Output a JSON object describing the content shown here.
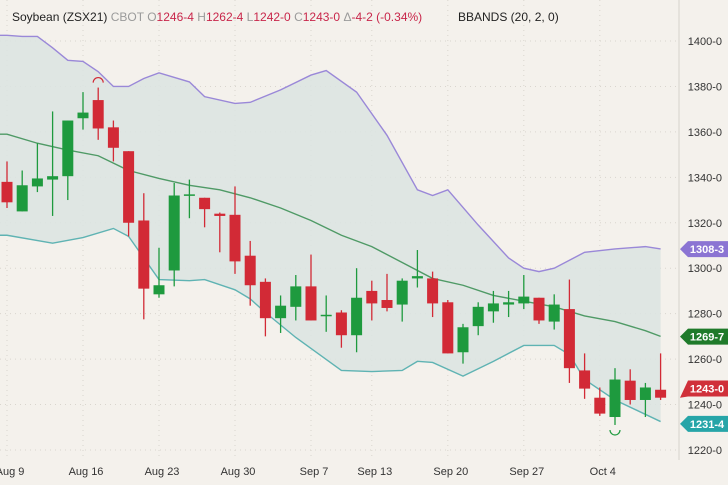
{
  "header": {
    "symbol": "Soybean (ZSX21)",
    "exchange": "CBOT",
    "open_label": "O",
    "open": "1246-4",
    "high_label": "H",
    "high": "1262-4",
    "low_label": "L",
    "low": "1242-0",
    "close_label": "C",
    "close": "1243-0",
    "change_label": "Δ",
    "change": "-4-2 (-0.34%)",
    "indicator": "BBANDS (20, 2, 0)"
  },
  "colors": {
    "up": "#1e9a3e",
    "down": "#d22a36",
    "upper_band": "#9a88d8",
    "middle_band": "#4f9a66",
    "lower_band": "#5fb3b3",
    "band_fill": "#dbe4e2"
  },
  "chart_data": {
    "type": "candlestick",
    "yaxis": {
      "ylim": [
        1215,
        1408
      ],
      "ticks": [
        1220,
        1240,
        1260,
        1280,
        1300,
        1320,
        1340,
        1360,
        1380,
        1400
      ],
      "tick_labels": [
        "1220-0",
        "1240-0",
        "1260-0",
        "1280-0",
        "1300-0",
        "1320-0",
        "1340-0",
        "1360-0",
        "1380-0",
        "1400-0"
      ],
      "position": "right"
    },
    "xaxis": {
      "tick_labels": [
        {
          "index": 0,
          "label": "Aug 9"
        },
        {
          "index": 5,
          "label": "Aug 16"
        },
        {
          "index": 10,
          "label": "Aug 23"
        },
        {
          "index": 15,
          "label": "Aug 30"
        },
        {
          "index": 20,
          "label": "Sep 7"
        },
        {
          "index": 24,
          "label": "Sep 13"
        },
        {
          "index": 29,
          "label": "Sep 20"
        },
        {
          "index": 34,
          "label": "Sep 27"
        },
        {
          "index": 39,
          "label": "Oct 4"
        }
      ]
    },
    "grid": true,
    "candles": [
      [
        1338,
        1347,
        1326.5,
        1329
      ],
      [
        1325,
        1343,
        1325,
        1336.5
      ],
      [
        1336,
        1355,
        1333.5,
        1339.5
      ],
      [
        1339,
        1369,
        1323,
        1340.5
      ],
      [
        1340.5,
        1365,
        1330,
        1365
      ],
      [
        1366,
        1377.5,
        1361,
        1368.5
      ],
      [
        1374,
        1379.5,
        1356.5,
        1361.5
      ],
      [
        1362,
        1365,
        1347,
        1353
      ],
      [
        1351.5,
        1351.5,
        1314,
        1320
      ],
      [
        1321,
        1333,
        1277.5,
        1291
      ],
      [
        1288.5,
        1309,
        1287,
        1292.5
      ],
      [
        1299,
        1337.5,
        1292,
        1332
      ],
      [
        1332,
        1339,
        1322,
        1332.5
      ],
      [
        1331,
        1331,
        1318,
        1326
      ],
      [
        1324,
        1324.5,
        1307,
        1323
      ],
      [
        1323.5,
        1336,
        1297.5,
        1303
      ],
      [
        1305.5,
        1312,
        1283.5,
        1292.5
      ],
      [
        1294,
        1295.5,
        1270,
        1278
      ],
      [
        1278,
        1288,
        1271.5,
        1283.5
      ],
      [
        1283,
        1297,
        1277,
        1292
      ],
      [
        1292,
        1306,
        1277,
        1277
      ],
      [
        1279,
        1288,
        1272,
        1279.5
      ],
      [
        1280.5,
        1281.5,
        1265,
        1270.5
      ],
      [
        1270.5,
        1300,
        1263,
        1287
      ],
      [
        1290,
        1294.5,
        1277,
        1284.5
      ],
      [
        1286,
        1297.5,
        1281,
        1282.5
      ],
      [
        1284,
        1295.5,
        1276.5,
        1294.5
      ],
      [
        1295.5,
        1308,
        1291.5,
        1296.5
      ],
      [
        1295.5,
        1298.5,
        1278.5,
        1284.5
      ],
      [
        1285,
        1286,
        1262.5,
        1262.5
      ],
      [
        1263,
        1275.5,
        1258,
        1274
      ],
      [
        1274.5,
        1285,
        1270.5,
        1283
      ],
      [
        1281,
        1290,
        1276,
        1284.5
      ],
      [
        1284,
        1290,
        1278.5,
        1285
      ],
      [
        1284.5,
        1297,
        1282,
        1287.5
      ],
      [
        1287,
        1287,
        1275.5,
        1277
      ],
      [
        1276.5,
        1288.5,
        1273,
        1284
      ],
      [
        1282,
        1295,
        1249.5,
        1256
      ],
      [
        1255,
        1262.5,
        1242.5,
        1247
      ],
      [
        1243,
        1247.5,
        1235,
        1236
      ],
      [
        1234.5,
        1256,
        1231,
        1251
      ],
      [
        1250.5,
        1255.5,
        1240,
        1242
      ],
      [
        1242,
        1249.5,
        1234.5,
        1247.5
      ],
      [
        1246.5,
        1262.5,
        1242,
        1243
      ]
    ],
    "candle_fields": [
      "open",
      "high",
      "low",
      "close"
    ],
    "bbands": {
      "upper": [
        [
          0,
          1402.5
        ],
        [
          1,
          1402
        ],
        [
          2,
          1402
        ],
        [
          3,
          1397
        ],
        [
          4,
          1391.5
        ],
        [
          5,
          1391
        ],
        [
          6,
          1386.5
        ],
        [
          7,
          1380
        ],
        [
          8,
          1380
        ],
        [
          9,
          1383.5
        ],
        [
          10,
          1386
        ],
        [
          12,
          1382
        ],
        [
          13,
          1375.5
        ],
        [
          15,
          1372.5
        ],
        [
          16,
          1373
        ],
        [
          18,
          1378.5
        ],
        [
          20,
          1385
        ],
        [
          21,
          1387
        ],
        [
          23,
          1377.5
        ],
        [
          25,
          1358.5
        ],
        [
          27,
          1334.5
        ],
        [
          28,
          1332
        ],
        [
          29,
          1334.5
        ],
        [
          31,
          1319
        ],
        [
          33,
          1304.5
        ],
        [
          34,
          1300
        ],
        [
          35,
          1298.5
        ],
        [
          36,
          1300
        ],
        [
          38,
          1307
        ],
        [
          40,
          1308.5
        ],
        [
          42,
          1309.5
        ],
        [
          43,
          1308.5
        ]
      ],
      "middle": [
        [
          0,
          1359
        ],
        [
          2,
          1355
        ],
        [
          4,
          1352
        ],
        [
          6,
          1349.5
        ],
        [
          8,
          1343
        ],
        [
          10,
          1339.5
        ],
        [
          12,
          1336.5
        ],
        [
          14,
          1334.5
        ],
        [
          16,
          1331
        ],
        [
          18,
          1326.5
        ],
        [
          20,
          1321
        ],
        [
          22,
          1314.5
        ],
        [
          24,
          1309.5
        ],
        [
          26,
          1302.5
        ],
        [
          28,
          1295.5
        ],
        [
          30,
          1292.5
        ],
        [
          32,
          1288
        ],
        [
          34,
          1285.5
        ],
        [
          36,
          1283
        ],
        [
          38,
          1279
        ],
        [
          40,
          1276.5
        ],
        [
          42,
          1272.5
        ],
        [
          43,
          1270
        ]
      ],
      "lower": [
        [
          0,
          1314.5
        ],
        [
          3,
          1311
        ],
        [
          5,
          1313.5
        ],
        [
          7,
          1317.5
        ],
        [
          8,
          1314
        ],
        [
          10,
          1295
        ],
        [
          12,
          1294.5
        ],
        [
          13,
          1295
        ],
        [
          15,
          1290.5
        ],
        [
          16,
          1286.5
        ],
        [
          17,
          1280.5
        ],
        [
          19,
          1269.5
        ],
        [
          22,
          1255
        ],
        [
          24,
          1254.5
        ],
        [
          26,
          1255
        ],
        [
          27,
          1259
        ],
        [
          28,
          1258.5
        ],
        [
          30,
          1252.5
        ],
        [
          32,
          1259
        ],
        [
          34,
          1266
        ],
        [
          36,
          1266
        ],
        [
          37,
          1262
        ],
        [
          38,
          1251
        ],
        [
          40,
          1242
        ],
        [
          43,
          1232.5
        ]
      ]
    },
    "price_tags": [
      {
        "label": "1308-3",
        "value": 1308.375,
        "series": "upper",
        "color": "#8b74d3"
      },
      {
        "label": "1269-7",
        "value": 1269.875,
        "series": "middle",
        "color": "#1f7a2a"
      },
      {
        "label": "1243-0",
        "value": 1243,
        "series": "close",
        "color": "#d0303a"
      },
      {
        "label": "1231-4",
        "value": 1231.5,
        "series": "lower",
        "color": "#26a5a8"
      }
    ],
    "markers": [
      {
        "index": 6,
        "type": "high-arc"
      },
      {
        "index": 40,
        "type": "low-arc"
      }
    ]
  }
}
